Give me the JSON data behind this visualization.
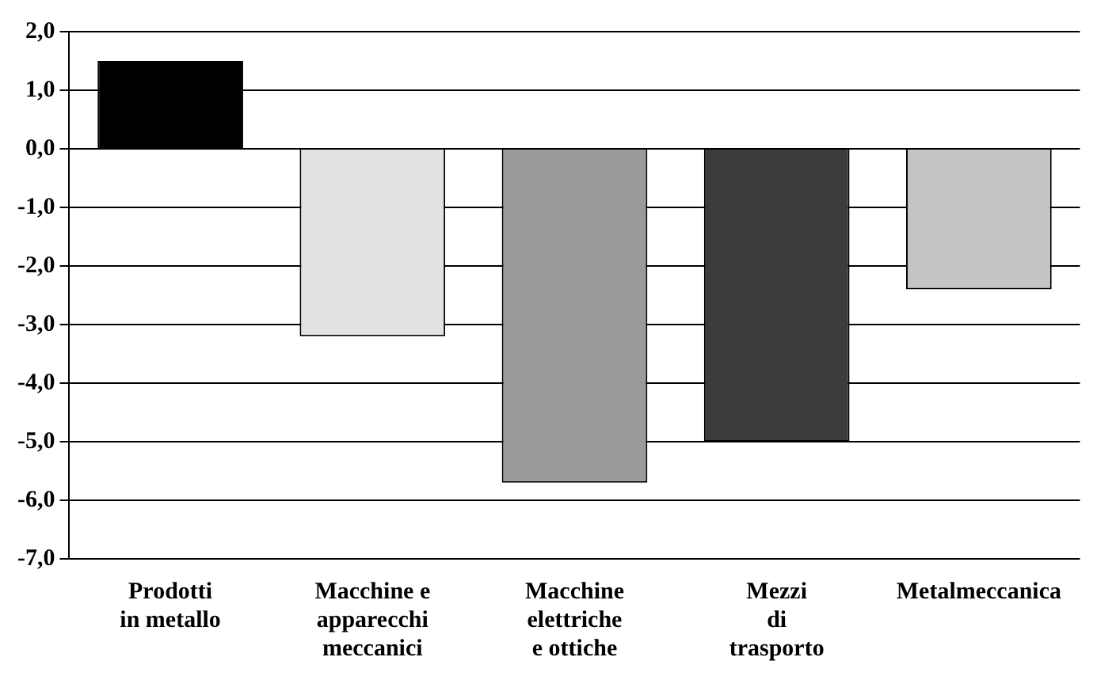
{
  "chart_data": {
    "type": "bar",
    "categories": [
      "Prodotti\nin metallo",
      "Macchine e\napparecchi\nmeccanici",
      "Macchine\nelettriche\ne ottiche",
      "Mezzi\ndi\ntrasporto",
      "Metalmeccanica"
    ],
    "values": [
      1.5,
      -3.2,
      -5.7,
      -5.0,
      -2.4
    ],
    "colors": [
      "#000000",
      "#e2e2e2",
      "#9a9a9a",
      "#3c3c3c",
      "#c4c4c4"
    ],
    "ylim": [
      -7,
      2
    ],
    "yticks": [
      {
        "value": 2,
        "label": "2,0"
      },
      {
        "value": 1,
        "label": "1,0"
      },
      {
        "value": 0,
        "label": "0,0"
      },
      {
        "value": -1,
        "label": "-1,0"
      },
      {
        "value": -2,
        "label": "-2,0"
      },
      {
        "value": -3,
        "label": "-3,0"
      },
      {
        "value": -4,
        "label": "-4,0"
      },
      {
        "value": -5,
        "label": "-5,0"
      },
      {
        "value": -6,
        "label": "-6,0"
      },
      {
        "value": -7,
        "label": "-7,0"
      }
    ],
    "grid": "y",
    "legend": false
  }
}
